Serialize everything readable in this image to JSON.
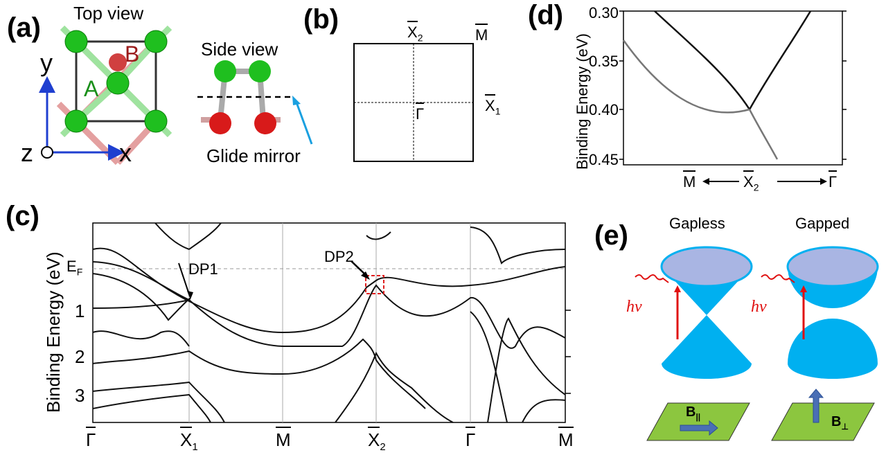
{
  "panels": {
    "a": {
      "label": "(a)",
      "top_view": "Top view",
      "side_view": "Side view",
      "glide_mirror": "Glide mirror",
      "site_a": "A",
      "site_b": "B",
      "axis_x": "x",
      "axis_y": "y",
      "axis_z": "z"
    },
    "b": {
      "label": "(b)",
      "x2": "X",
      "x2_sub": "2",
      "m": "M",
      "x1": "X",
      "x1_sub": "1",
      "gamma": "Γ"
    },
    "c": {
      "label": "(c)",
      "ylabel": "Binding Energy (eV)",
      "ef": "E",
      "ef_sub": "F",
      "dp1": "DP1",
      "dp2": "DP2",
      "yticks": [
        "1",
        "2",
        "3"
      ],
      "xticks": [
        {
          "main": "Γ",
          "sub": ""
        },
        {
          "main": "X",
          "sub": "1"
        },
        {
          "main": "M",
          "sub": ""
        },
        {
          "main": "X",
          "sub": "2"
        },
        {
          "main": "Γ",
          "sub": ""
        },
        {
          "main": "M",
          "sub": ""
        }
      ]
    },
    "d": {
      "label": "(d)",
      "ylabel": "Binding Energy (eV)",
      "yticks": [
        "0.30",
        "0.35",
        "0.40",
        "0.45"
      ],
      "x_left": "M",
      "x_mid": "X",
      "x_mid_sub": "2",
      "x_right": "Γ"
    },
    "e": {
      "label": "(e)",
      "gapless": "Gapless",
      "gapped": "Gapped",
      "hv": "hv",
      "b_par": "B",
      "b_par_sub": "||",
      "b_perp": "B",
      "b_perp_sub": "⊥"
    }
  },
  "colors": {
    "atom_green": "#1fbf1f",
    "atom_red": "#d81a1a",
    "site_b_color": "#9a1a1a",
    "site_a_color": "#1a8f1a",
    "axis_blue": "#1f3fd0",
    "mirror_arrow": "#1aa0e0",
    "cone_blue": "#00b0f0",
    "cone_top": "#a9b5e3",
    "plane_green": "#8cc63f",
    "arrow_blue": "#4a6fb5",
    "photon_red": "#e01010",
    "dp_box": "#e02020"
  }
}
